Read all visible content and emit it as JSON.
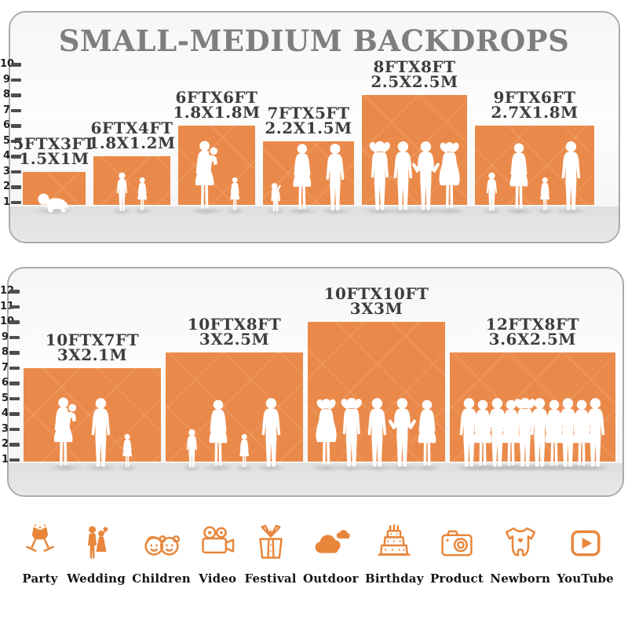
{
  "title": "SMALL-MEDIUM BACKDROPS",
  "colors": {
    "backdrop_orange": "#EA8A4A",
    "icon_orange": "#E8863B",
    "label_gray": "#3d3d3d",
    "title_gray": "#7e7e7e"
  },
  "panels": [
    {
      "name": "small-medium-backdrops-top",
      "ruler": [
        "10",
        "9",
        "8",
        "7",
        "6",
        "5",
        "4",
        "3",
        "2",
        "1"
      ],
      "backdrops": [
        {
          "size_ft": "5FTX3FT",
          "size_m": "1.5X1M",
          "w": 5,
          "h": 3,
          "figures": [
            "baby"
          ]
        },
        {
          "size_ft": "6FTX4FT",
          "size_m": "1.8X1.2M",
          "w": 6,
          "h": 4,
          "figures": [
            "boy",
            "girl"
          ]
        },
        {
          "size_ft": "6FTX6FT",
          "size_m": "1.8X1.8M",
          "w": 6,
          "h": 6,
          "figures": [
            "woman-baby",
            "girl"
          ]
        },
        {
          "size_ft": "7FTX5FT",
          "size_m": "2.2X1.5M",
          "w": 7,
          "h": 5,
          "figures": [
            "toddler",
            "woman",
            "man"
          ]
        },
        {
          "size_ft": "8FTX8FT",
          "size_m": "2.5X2.5M",
          "w": 8,
          "h": 8,
          "figures": [
            "man-pose",
            "man",
            "man-hips",
            "woman-pose"
          ]
        },
        {
          "size_ft": "9FTX6FT",
          "size_m": "2.7X1.8M",
          "w": 9,
          "h": 6,
          "figures": [
            "boy",
            "woman",
            "girl",
            "man"
          ]
        }
      ]
    },
    {
      "name": "small-medium-backdrops-bottom",
      "ruler": [
        "12",
        "11",
        "10",
        "9",
        "8",
        "7",
        "6",
        "5",
        "4",
        "3",
        "2",
        "1"
      ],
      "backdrops": [
        {
          "size_ft": "10FTX7FT",
          "size_m": "3X2.1M",
          "w": 10,
          "h": 7,
          "figures": [
            "woman-baby",
            "man",
            "girl"
          ]
        },
        {
          "size_ft": "10FTX8FT",
          "size_m": "3X2.5M",
          "w": 10,
          "h": 8,
          "figures": [
            "boy",
            "woman",
            "girl",
            "man"
          ]
        },
        {
          "size_ft": "10FTX10FT",
          "size_m": "3X3M",
          "w": 10,
          "h": 10,
          "figures": [
            "woman-pose",
            "man-pose",
            "man",
            "man-hips",
            "woman"
          ]
        },
        {
          "size_ft": "12FTX8FT",
          "size_m": "3.6X2.5M",
          "w": 12,
          "h": 8,
          "figures": [
            "man",
            "woman",
            "man-hips",
            "woman",
            "man-pose",
            "man",
            "woman",
            "man",
            "woman",
            "man"
          ]
        }
      ]
    }
  ],
  "categories": [
    {
      "label": "Party",
      "icon": "party-icon"
    },
    {
      "label": "Wedding",
      "icon": "wedding-icon"
    },
    {
      "label": "Children",
      "icon": "children-icon"
    },
    {
      "label": "Video",
      "icon": "video-icon"
    },
    {
      "label": "Festival",
      "icon": "festival-icon"
    },
    {
      "label": "Outdoor",
      "icon": "outdoor-icon"
    },
    {
      "label": "Birthday",
      "icon": "birthday-icon"
    },
    {
      "label": "Product",
      "icon": "product-icon"
    },
    {
      "label": "Newborn",
      "icon": "newborn-icon"
    },
    {
      "label": "YouTube",
      "icon": "youtube-icon"
    }
  ]
}
